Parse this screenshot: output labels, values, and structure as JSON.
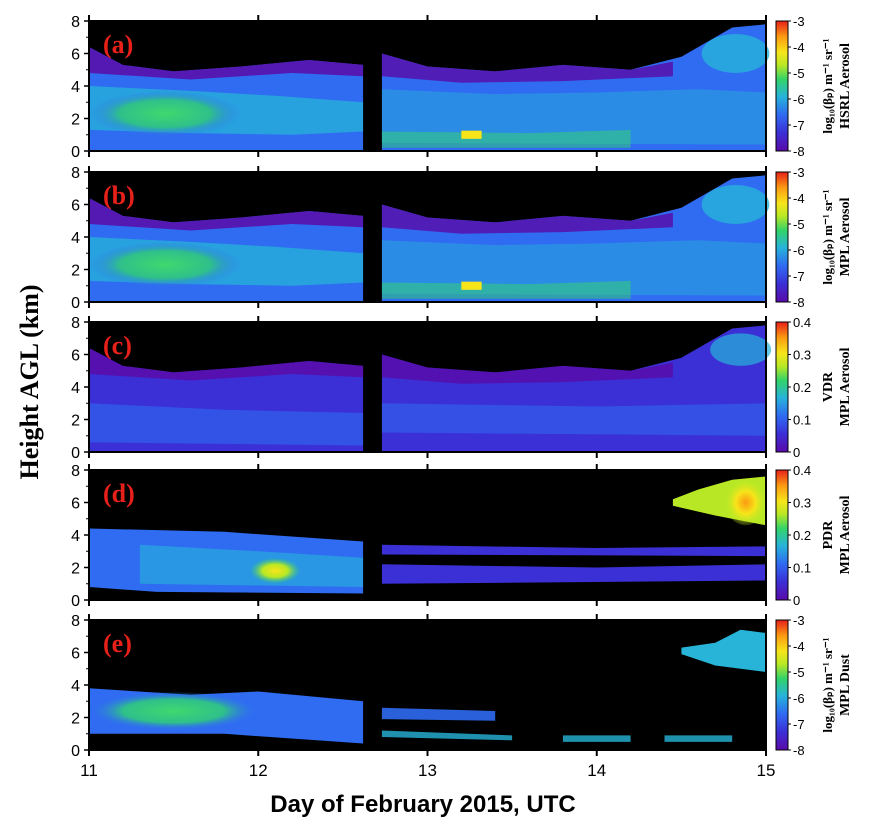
{
  "figure": {
    "ylabel": "Height AGL (km)",
    "xlabel": "Day of February 2015, UTC",
    "x_ticks": [
      "11",
      "12",
      "13",
      "14",
      "15"
    ]
  },
  "chart_data": [
    {
      "type": "heatmap",
      "panel_label": "(a)",
      "colorbar_label_line1": "log",
      "colorbar_label_sub": "10",
      "colorbar_label_rest": "(β",
      "colorbar_label_sub2": "p",
      "colorbar_label_tail": ") m",
      "colorbar_units": "m⁻¹ sr⁻¹",
      "colorbar_label_line2": "HSRL Aerosol",
      "colorbar_ticks": [
        "-3",
        "-4",
        "-5",
        "-6",
        "-7",
        "-8"
      ],
      "clim": [
        -8,
        -3
      ],
      "y_ticks": [
        "0",
        "2",
        "4",
        "6",
        "8"
      ],
      "xlim": [
        11,
        15
      ],
      "ylim": [
        0,
        8
      ]
    },
    {
      "type": "heatmap",
      "panel_label": "(b)",
      "colorbar_units": "m⁻¹ sr⁻¹",
      "colorbar_label_line2": "MPL Aerosol",
      "colorbar_ticks": [
        "-3",
        "-4",
        "-5",
        "-6",
        "-7",
        "-8"
      ],
      "clim": [
        -8,
        -3
      ],
      "y_ticks": [
        "0",
        "2",
        "4",
        "6",
        "8"
      ],
      "xlim": [
        11,
        15
      ],
      "ylim": [
        0,
        8
      ]
    },
    {
      "type": "heatmap",
      "panel_label": "(c)",
      "colorbar_label_line1": "VDR",
      "colorbar_label_line2": "MPL Aerosol",
      "colorbar_ticks": [
        "0.4",
        "0.3",
        "0.2",
        "0.1",
        "0"
      ],
      "clim": [
        0,
        0.4
      ],
      "y_ticks": [
        "0",
        "2",
        "4",
        "6",
        "8"
      ],
      "xlim": [
        11,
        15
      ],
      "ylim": [
        0,
        8
      ]
    },
    {
      "type": "heatmap",
      "panel_label": "(d)",
      "colorbar_label_line1": "PDR",
      "colorbar_label_line2": "MPL Aerosol",
      "colorbar_ticks": [
        "0.4",
        "0.3",
        "0.2",
        "0.1",
        "0"
      ],
      "clim": [
        0,
        0.4
      ],
      "y_ticks": [
        "0",
        "2",
        "4",
        "6",
        "8"
      ],
      "xlim": [
        11,
        15
      ],
      "ylim": [
        0,
        8
      ]
    },
    {
      "type": "heatmap",
      "panel_label": "(e)",
      "colorbar_units": "m⁻¹ sr⁻¹",
      "colorbar_label_line2": "MPL Dust",
      "colorbar_ticks": [
        "-3",
        "-4",
        "-5",
        "-6",
        "-7",
        "-8"
      ],
      "clim": [
        -8,
        -3
      ],
      "y_ticks": [
        "0",
        "2",
        "4",
        "6",
        "8"
      ],
      "xlim": [
        11,
        15
      ],
      "ylim": [
        0,
        8
      ]
    }
  ],
  "colors": {
    "panel_background": "#000000",
    "panel_label": "#e8201a",
    "colormap": [
      "#5a0aa8",
      "#3b2fd6",
      "#2f6cf2",
      "#27b4d8",
      "#33d36a",
      "#b8e825",
      "#f7e51a",
      "#fb9a12",
      "#e8201a"
    ]
  }
}
